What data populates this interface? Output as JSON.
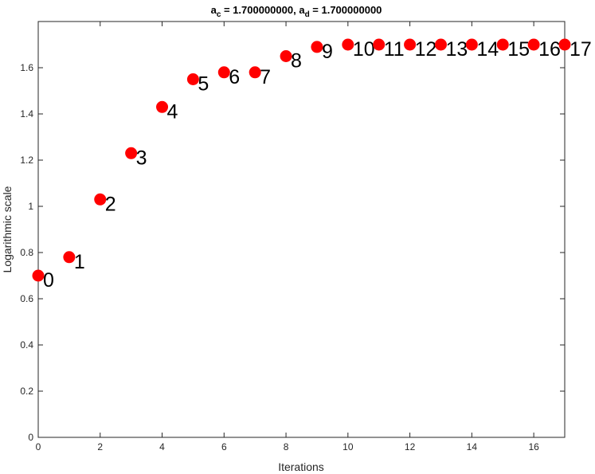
{
  "chart_data": {
    "type": "scatter",
    "title": {
      "part1": "a",
      "sub1": "c",
      "part2": " = 1.700000000, a",
      "sub2": "d",
      "part3": " = 1.700000000"
    },
    "xlabel": "Iterations",
    "ylabel": "Logarithmic scale",
    "xlim": [
      0,
      17
    ],
    "ylim": [
      0,
      1.8
    ],
    "xticks": [
      0,
      2,
      4,
      6,
      8,
      10,
      12,
      14,
      16
    ],
    "yticks": [
      0,
      0.2,
      0.4,
      0.6,
      0.8,
      1,
      1.2,
      1.4,
      1.6
    ],
    "grid": false,
    "marker_color": "#ff0000",
    "points": [
      {
        "x": 0,
        "y": 0.7,
        "label": "0"
      },
      {
        "x": 1,
        "y": 0.78,
        "label": "1"
      },
      {
        "x": 2,
        "y": 1.03,
        "label": "2"
      },
      {
        "x": 3,
        "y": 1.23,
        "label": "3"
      },
      {
        "x": 4,
        "y": 1.43,
        "label": "4"
      },
      {
        "x": 5,
        "y": 1.55,
        "label": "5"
      },
      {
        "x": 6,
        "y": 1.58,
        "label": "6"
      },
      {
        "x": 7,
        "y": 1.58,
        "label": "7"
      },
      {
        "x": 8,
        "y": 1.65,
        "label": "8"
      },
      {
        "x": 9,
        "y": 1.69,
        "label": "9"
      },
      {
        "x": 10,
        "y": 1.7,
        "label": "10"
      },
      {
        "x": 11,
        "y": 1.7,
        "label": "11"
      },
      {
        "x": 12,
        "y": 1.7,
        "label": "12"
      },
      {
        "x": 13,
        "y": 1.7,
        "label": "13"
      },
      {
        "x": 14,
        "y": 1.7,
        "label": "14"
      },
      {
        "x": 15,
        "y": 1.7,
        "label": "15"
      },
      {
        "x": 16,
        "y": 1.7,
        "label": "16"
      },
      {
        "x": 17,
        "y": 1.7,
        "label": "17"
      }
    ]
  }
}
